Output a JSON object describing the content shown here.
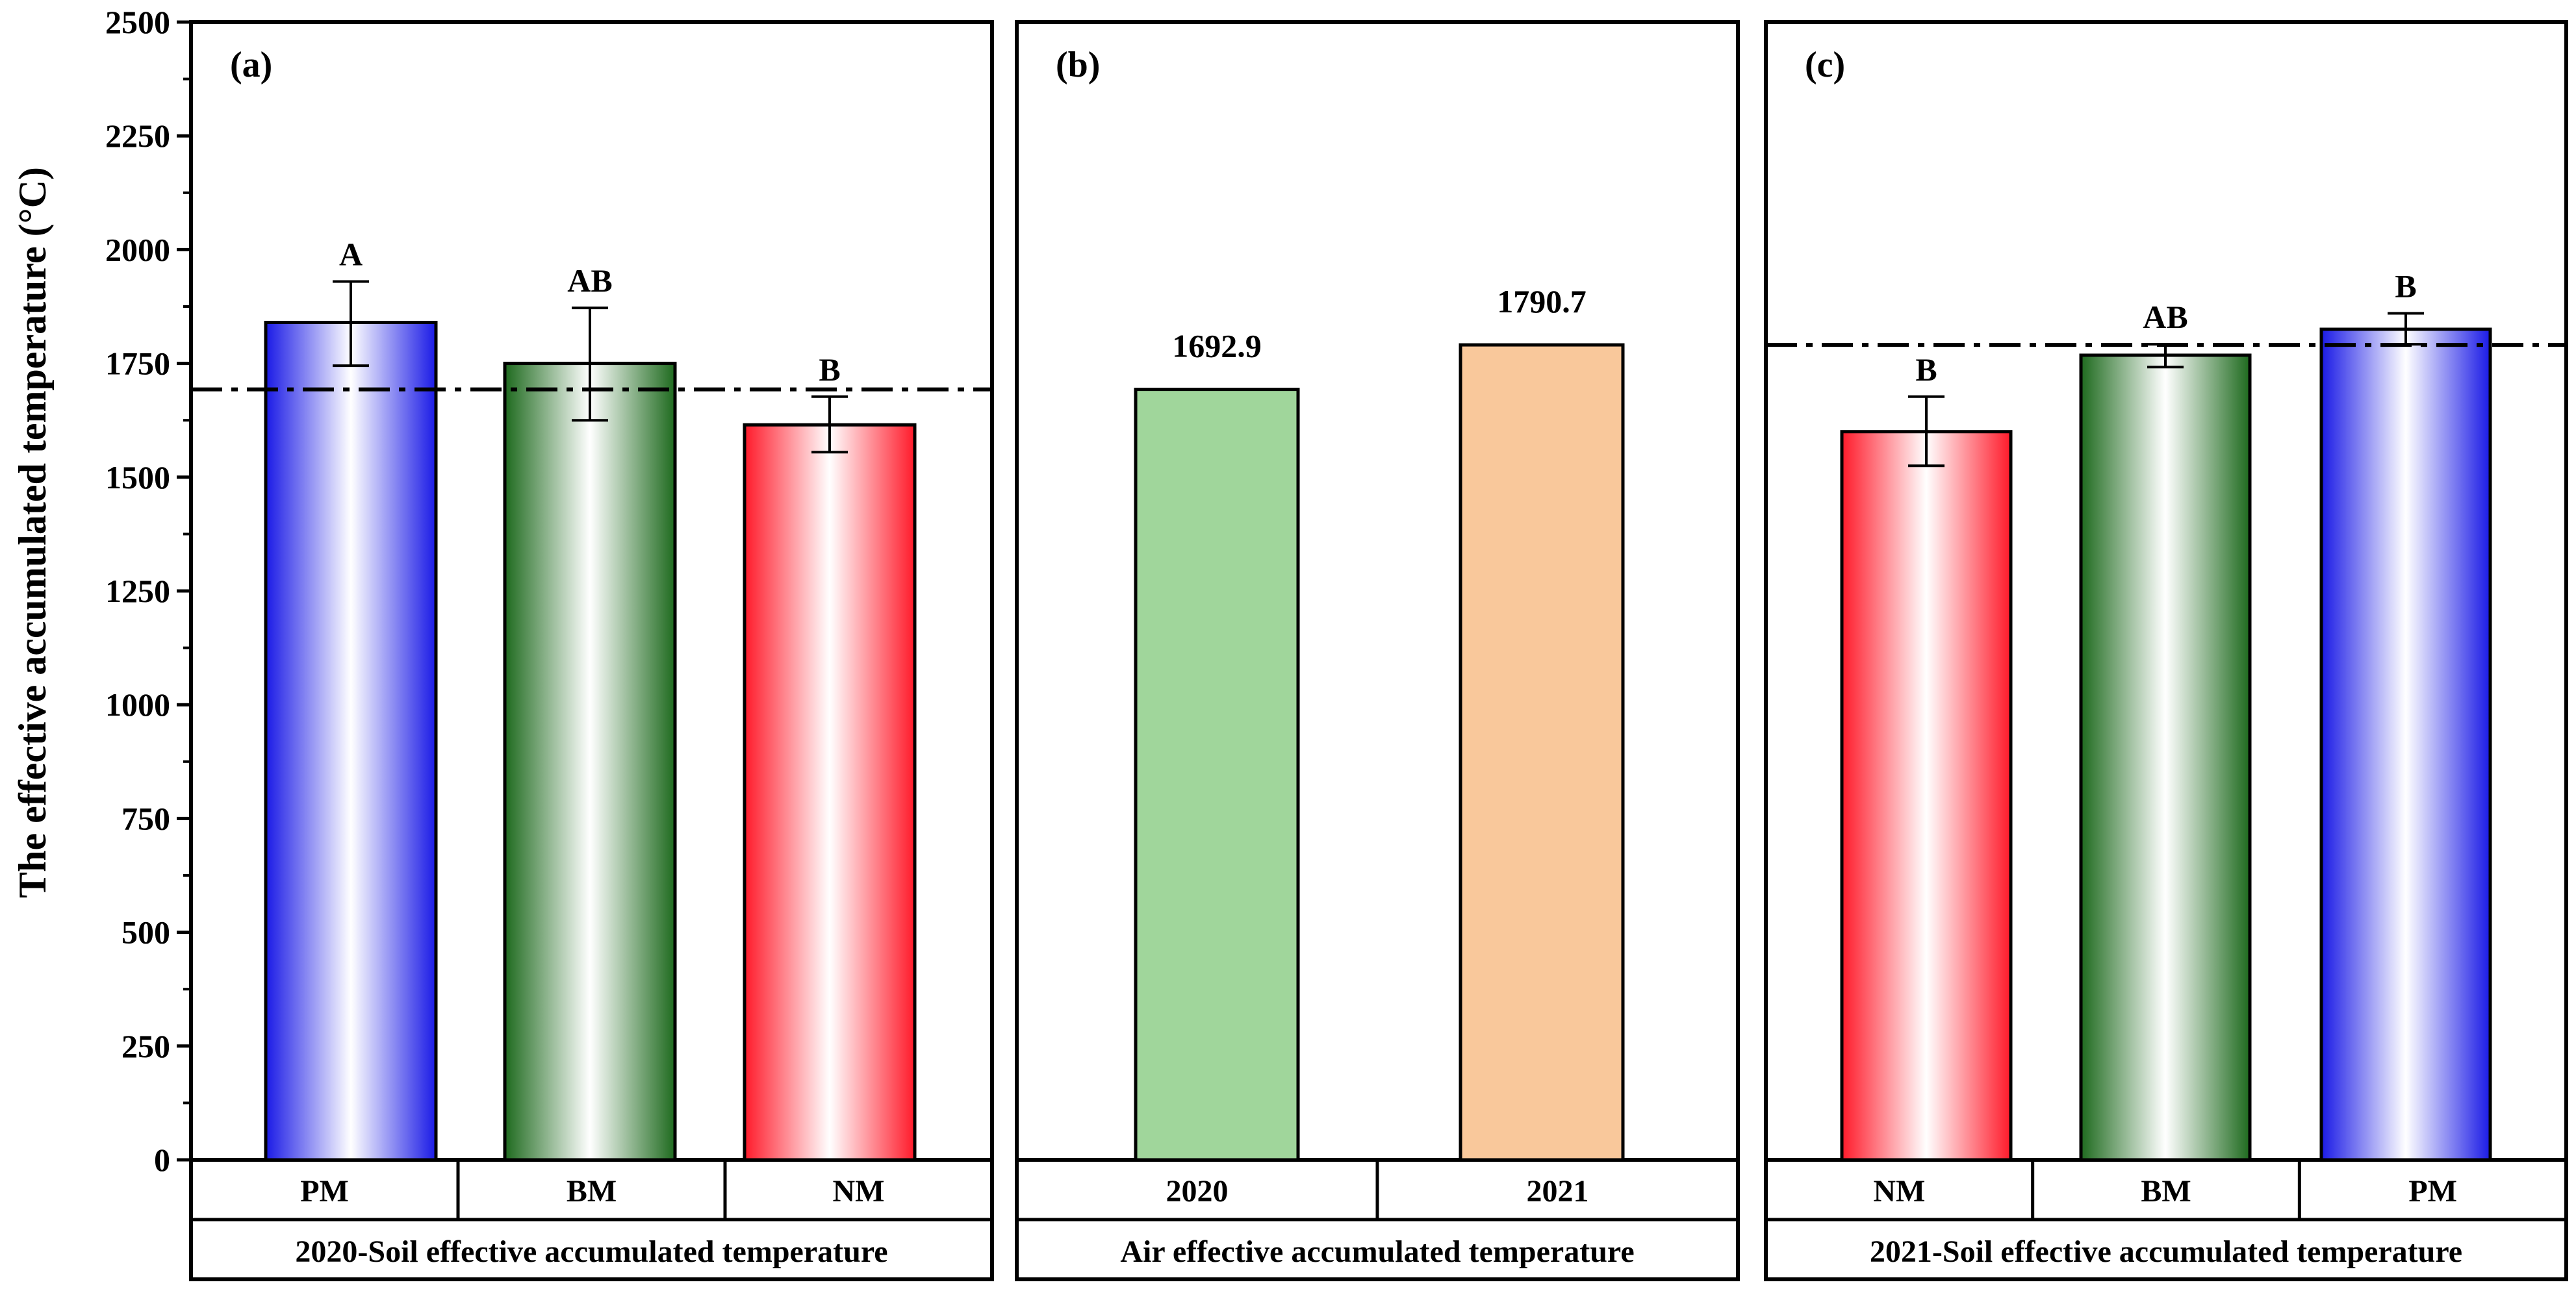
{
  "chart_data": {
    "type": "bar",
    "ylabel": "The effective accumulated temperature (°C)",
    "ylim": [
      0,
      2500
    ],
    "yticks": [
      "0",
      "250",
      "500",
      "750",
      "1000",
      "1250",
      "1500",
      "1750",
      "2000",
      "2250",
      "2500"
    ],
    "panels": [
      {
        "letter": "(a)",
        "footer": "2020-Soil effective accumulated temperature",
        "reference_line": 1692.9,
        "bars": [
          {
            "category": "PM",
            "value": 1840,
            "err_low": 1745,
            "err_high": 1930,
            "letter": "A",
            "color": "blue"
          },
          {
            "category": "BM",
            "value": 1750,
            "err_low": 1625,
            "err_high": 1872,
            "letter": "AB",
            "color": "green"
          },
          {
            "category": "NM",
            "value": 1615,
            "err_low": 1555,
            "err_high": 1677,
            "letter": "B",
            "color": "red"
          }
        ]
      },
      {
        "letter": "(b)",
        "footer": "Air effective accumulated temperature",
        "bars": [
          {
            "category": "2020",
            "value": 1692.9,
            "value_label": "1692.9",
            "color": "#a0d69b"
          },
          {
            "category": "2021",
            "value": 1790.7,
            "value_label": "1790.7",
            "color": "#f9c89b"
          }
        ]
      },
      {
        "letter": "(c)",
        "footer": "2021-Soil effective accumulated temperature",
        "reference_line": 1790.7,
        "bars": [
          {
            "category": "NM",
            "value": 1600,
            "err_low": 1525,
            "err_high": 1677,
            "letter": "B",
            "color": "red"
          },
          {
            "category": "BM",
            "value": 1768,
            "err_low": 1742,
            "err_high": 1792,
            "letter": "AB",
            "color": "green"
          },
          {
            "category": "PM",
            "value": 1825,
            "err_low": 1792,
            "err_high": 1860,
            "letter": "B",
            "color": "blue"
          }
        ]
      }
    ]
  }
}
